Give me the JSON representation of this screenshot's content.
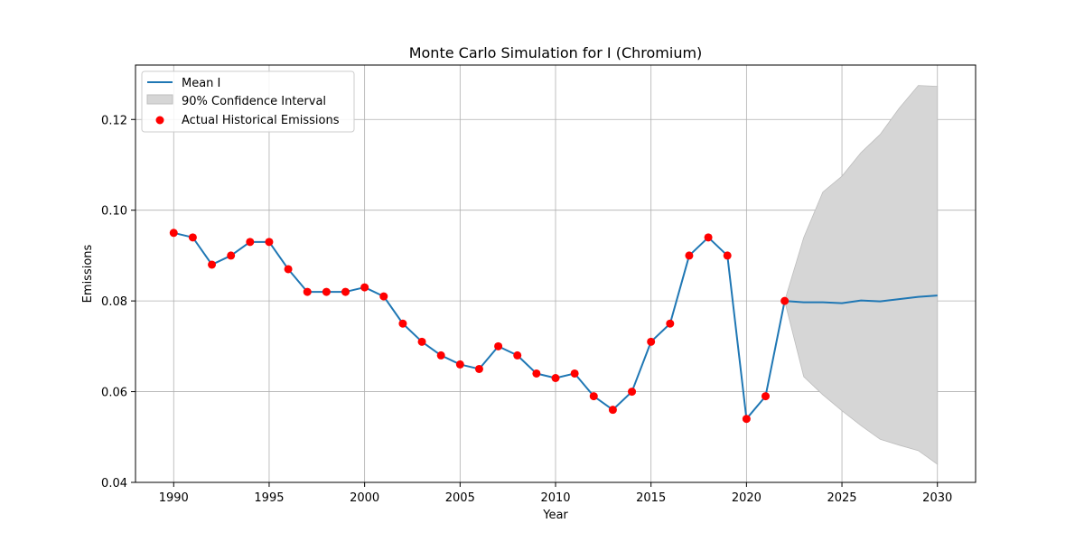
{
  "chart_data": {
    "type": "line",
    "title": "Monte Carlo Simulation for I (Chromium)",
    "xlabel": "Year",
    "ylabel": "Emissions",
    "xlim": [
      1988,
      2032
    ],
    "ylim": [
      0.04,
      0.132
    ],
    "xticks": [
      1990,
      1995,
      2000,
      2005,
      2010,
      2015,
      2020,
      2025,
      2030
    ],
    "xtick_labels": [
      "1990",
      "1995",
      "2000",
      "2005",
      "2010",
      "2015",
      "2020",
      "2025",
      "2030"
    ],
    "yticks": [
      0.04,
      0.06,
      0.08,
      0.1,
      0.12
    ],
    "ytick_labels": [
      "0.04",
      "0.06",
      "0.08",
      "0.10",
      "0.12"
    ],
    "grid": true,
    "legend_position": "top-left",
    "legend": [
      "Mean I",
      "90% Confidence Interval",
      "Actual Historical Emissions"
    ],
    "colors": {
      "mean": "#1f77b4",
      "band": "#d6d6d6",
      "band_edge": "#bdbdbd",
      "points": "#ff0000",
      "grid": "#b0b0b0"
    },
    "mean": {
      "x": [
        1990,
        1991,
        1992,
        1993,
        1994,
        1995,
        1996,
        1997,
        1998,
        1999,
        2000,
        2001,
        2002,
        2003,
        2004,
        2005,
        2006,
        2007,
        2008,
        2009,
        2010,
        2011,
        2012,
        2013,
        2014,
        2015,
        2016,
        2017,
        2018,
        2019,
        2020,
        2021,
        2022,
        2023,
        2024,
        2025,
        2026,
        2027,
        2028,
        2029,
        2030
      ],
      "y": [
        0.095,
        0.094,
        0.088,
        0.09,
        0.093,
        0.093,
        0.087,
        0.082,
        0.082,
        0.082,
        0.083,
        0.081,
        0.075,
        0.071,
        0.068,
        0.066,
        0.065,
        0.07,
        0.068,
        0.064,
        0.063,
        0.064,
        0.059,
        0.056,
        0.06,
        0.071,
        0.075,
        0.09,
        0.094,
        0.09,
        0.054,
        0.059,
        0.08,
        0.0797,
        0.0797,
        0.0795,
        0.0801,
        0.0799,
        0.0804,
        0.0809,
        0.0812
      ]
    },
    "confidence_interval": {
      "x": [
        2022,
        2023,
        2024,
        2025,
        2026,
        2027,
        2028,
        2029,
        2030
      ],
      "upper": [
        0.08,
        0.094,
        0.104,
        0.1075,
        0.1127,
        0.1167,
        0.1225,
        0.1275,
        0.1273
      ],
      "lower": [
        0.08,
        0.0633,
        0.0593,
        0.0558,
        0.0525,
        0.0495,
        0.0482,
        0.047,
        0.044
      ]
    },
    "historical": {
      "x": [
        1990,
        1991,
        1992,
        1993,
        1994,
        1995,
        1996,
        1997,
        1998,
        1999,
        2000,
        2001,
        2002,
        2003,
        2004,
        2005,
        2006,
        2007,
        2008,
        2009,
        2010,
        2011,
        2012,
        2013,
        2014,
        2015,
        2016,
        2017,
        2018,
        2019,
        2020,
        2021,
        2022
      ],
      "y": [
        0.095,
        0.094,
        0.088,
        0.09,
        0.093,
        0.093,
        0.087,
        0.082,
        0.082,
        0.082,
        0.083,
        0.081,
        0.075,
        0.071,
        0.068,
        0.066,
        0.065,
        0.07,
        0.068,
        0.064,
        0.063,
        0.064,
        0.059,
        0.056,
        0.06,
        0.071,
        0.075,
        0.09,
        0.094,
        0.09,
        0.054,
        0.059,
        0.08
      ]
    }
  }
}
